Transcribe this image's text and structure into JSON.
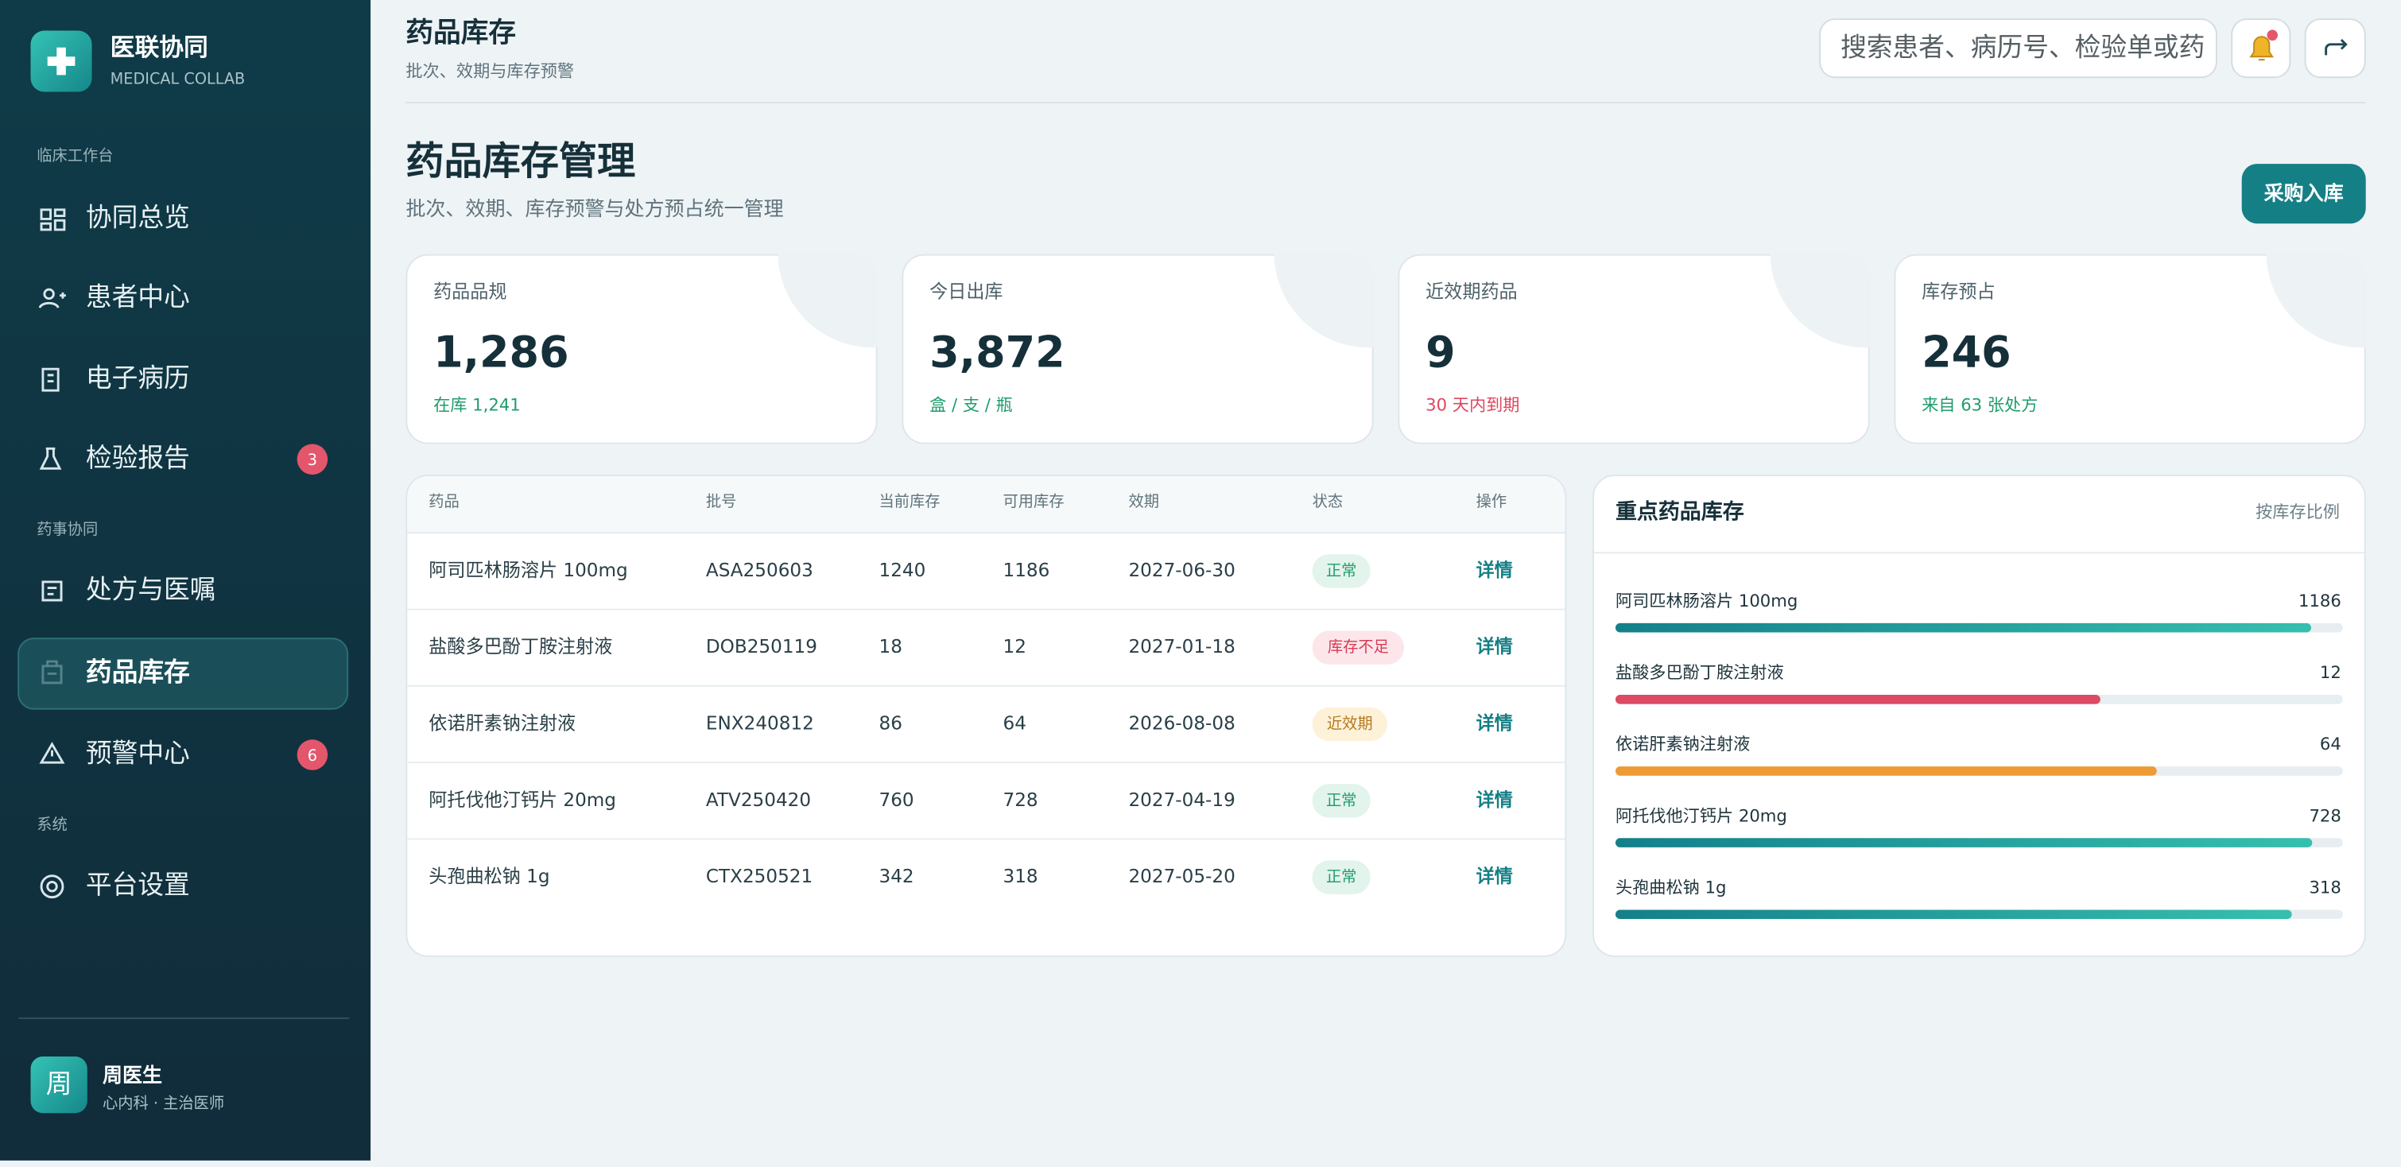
{
  "brand": {
    "name": "医联协同",
    "subtitle": "MEDICAL COLLAB"
  },
  "nav": [
    {
      "section": "临床工作台",
      "items": [
        {
          "label": "协同总览"
        },
        {
          "label": "患者中心"
        },
        {
          "label": "电子病历"
        },
        {
          "label": "检验报告",
          "badge": "3"
        }
      ]
    },
    {
      "section": "药事协同",
      "items": [
        {
          "label": "处方与医嘱"
        },
        {
          "label": "药品库存",
          "active": true
        },
        {
          "label": "预警中心",
          "badge": "6"
        }
      ]
    },
    {
      "section": "系统",
      "items": [
        {
          "label": "平台设置"
        }
      ]
    }
  ],
  "user": {
    "avatar": "周",
    "name": "周医生",
    "role": "心内科 · 主治医师"
  },
  "header": {
    "title": "药品库存",
    "subtitle": "批次、效期与库存预警",
    "search_placeholder": "搜索患者、病历号、检验单或药"
  },
  "page": {
    "title": "药品库存管理",
    "subtitle": "批次、效期、库存预警与处方预占统一管理",
    "action": "采购入库"
  },
  "stats": [
    {
      "label": "药品品规",
      "value": "1,286",
      "note": "在库 1,241",
      "note_color": "#1f9d6b"
    },
    {
      "label": "今日出库",
      "value": "3,872",
      "note": "盒 / 支 / 瓶",
      "note_color": "#1f9d6b"
    },
    {
      "label": "近效期药品",
      "value": "9",
      "note": "30 天内到期",
      "note_color": "#e0455f"
    },
    {
      "label": "库存预占",
      "value": "246",
      "note": "来自 63 张处方",
      "note_color": "#1f9d6b"
    }
  ],
  "table": {
    "columns": [
      "药品",
      "批号",
      "当前库存",
      "可用库存",
      "效期",
      "状态",
      "操作"
    ],
    "rows": [
      {
        "name": "阿司匹林肠溶片 100mg",
        "batch": "ASA250603",
        "current": 1240,
        "available": 1186,
        "expiry": "2027-06-30",
        "status": "正常",
        "status_color": "#1f9d6b",
        "status_bg": "#e2f4ec",
        "bar_color": "#1a8a8a",
        "action": "详情"
      },
      {
        "name": "盐酸多巴酚丁胺注射液",
        "batch": "DOB250119",
        "current": 18,
        "available": 12,
        "expiry": "2027-01-18",
        "status": "库存不足",
        "status_color": "#d63b55",
        "status_bg": "#fde6ea",
        "bar_color": "#dc4a63",
        "action": "详情"
      },
      {
        "name": "依诺肝素钠注射液",
        "batch": "ENX240812",
        "current": 86,
        "available": 64,
        "expiry": "2026-08-08",
        "status": "近效期",
        "status_color": "#b7791f",
        "status_bg": "#fdf1d8",
        "bar_color": "#ee9a35",
        "action": "详情"
      },
      {
        "name": "阿托伐他汀钙片 20mg",
        "batch": "ATV250420",
        "current": 760,
        "available": 728,
        "expiry": "2027-04-19",
        "status": "正常",
        "status_color": "#1f9d6b",
        "status_bg": "#e2f4ec",
        "bar_color": "#1a8a8a",
        "action": "详情"
      },
      {
        "name": "头孢曲松钠 1g",
        "batch": "CTX250521",
        "current": 342,
        "available": 318,
        "expiry": "2027-05-20",
        "status": "正常",
        "status_color": "#1f9d6b",
        "status_bg": "#e2f4ec",
        "bar_color": "#1a8a8a",
        "action": "详情"
      }
    ]
  },
  "panel": {
    "title": "重点药品库存",
    "note": "按库存比例"
  }
}
